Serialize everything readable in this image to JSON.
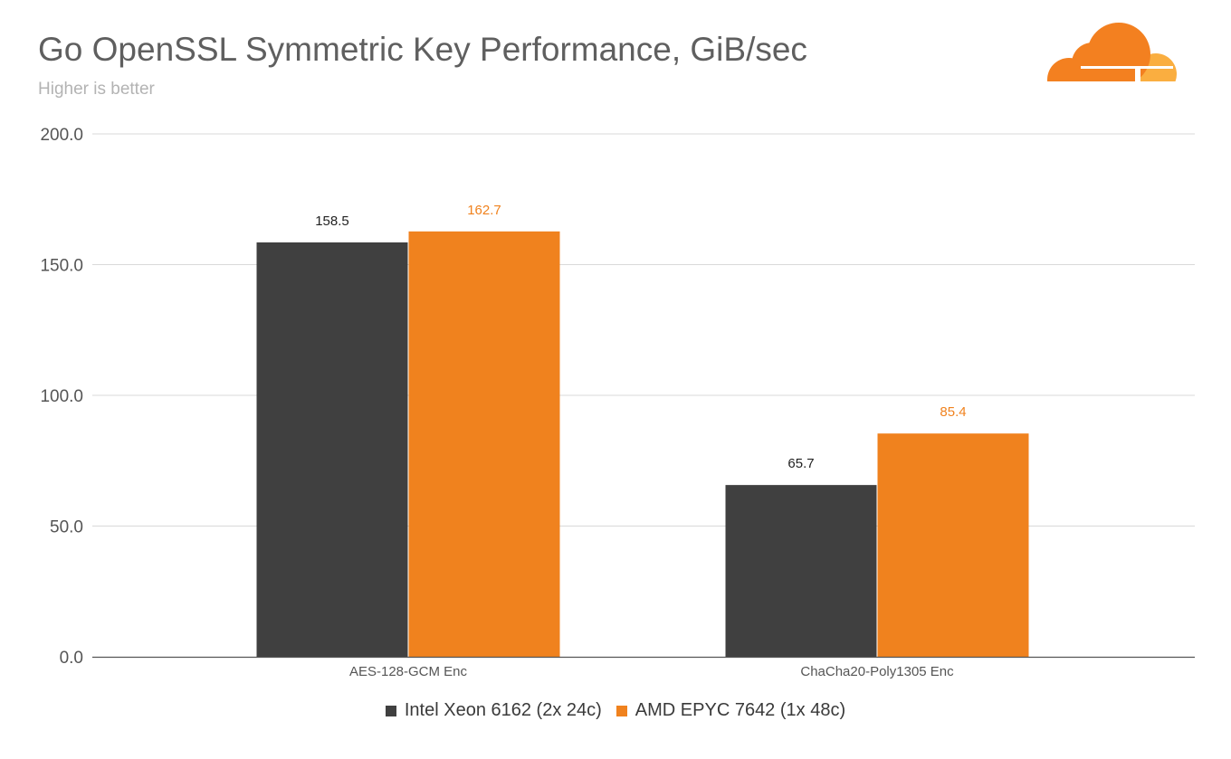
{
  "title": "Go OpenSSL Symmetric Key Performance, GiB/sec",
  "subtitle": "Higher is better",
  "logo": {
    "icon": "cloudflare-cloud-icon",
    "colors": [
      "#f38020",
      "#faae40"
    ]
  },
  "colors": {
    "intel": "#404040",
    "amd": "#f0821e",
    "grid": "#d9d9d9",
    "axis": "#555555",
    "tick_text": "#555555"
  },
  "chart_data": {
    "type": "bar",
    "title": "Go OpenSSL Symmetric Key Performance, GiB/sec",
    "subtitle": "Higher is better",
    "categories": [
      "AES-128-GCM Enc",
      "ChaCha20-Poly1305 Enc"
    ],
    "series": [
      {
        "name": "Intel Xeon 6162 (2x 24c)",
        "values": [
          158.5,
          65.7
        ],
        "color": "#404040"
      },
      {
        "name": "AMD EPYC 7642 (1x 48c)",
        "values": [
          162.7,
          85.4
        ],
        "color": "#f0821e"
      }
    ],
    "data_labels": [
      [
        "158.5",
        "65.7"
      ],
      [
        "162.7",
        "85.4"
      ]
    ],
    "yticks": [
      "0.0",
      "50.0",
      "100.0",
      "150.0",
      "200.0"
    ],
    "ylim": [
      0,
      200
    ],
    "xlabel": "",
    "ylabel": "",
    "grid": true,
    "legend_position": "bottom-center"
  }
}
